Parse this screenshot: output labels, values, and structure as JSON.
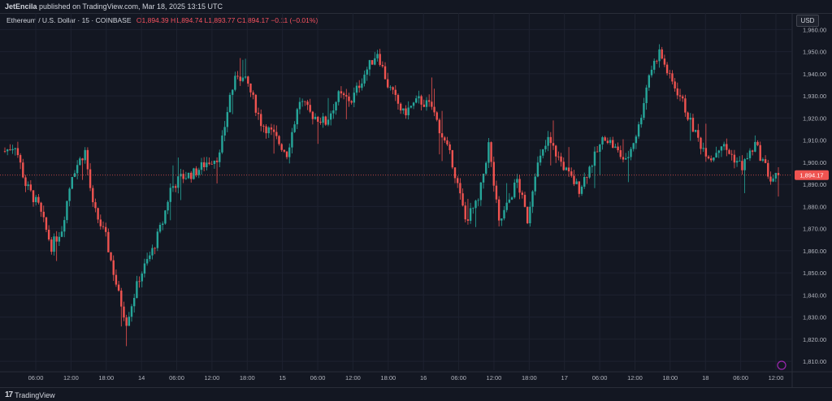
{
  "header": {
    "author": "JetEncila",
    "published_text": " published on TradingView.com, Mar 18, 2025 13:15 UTC"
  },
  "currency_label": "USD",
  "legend": {
    "symbol": "Ethereum / U.S. Dollar · 15 · COINBASE",
    "ohlc": "O1,894.39 H1,894.74 L1,893.77 C1,894.17 −0.11 (−0.01%)"
  },
  "footer": {
    "logo_mark": "17",
    "logo_text": "TradingView"
  },
  "colors": {
    "background": "#131722",
    "grid": "#1e2230",
    "up": "#26a69a",
    "down": "#ef5350",
    "price_line": "#ef5350",
    "axis_text": "#b2b5be"
  },
  "chart_data": {
    "type": "candlestick",
    "title": "",
    "xlabel": "",
    "ylabel": "",
    "ylim": [
      1806,
      1966
    ],
    "yticks": [
      1960,
      1950,
      1940,
      1930,
      1920,
      1910,
      1900,
      1890,
      1880,
      1870,
      1860,
      1850,
      1840,
      1830,
      1820,
      1810
    ],
    "ytick_labels": [
      "1,960.00",
      "1,950.00",
      "1,940.00",
      "1,930.00",
      "1,920.00",
      "1,910.00",
      "1,900.00",
      "1,890.00",
      "1,880.00",
      "1,870.00",
      "1,860.00",
      "1,850.00",
      "1,840.00",
      "1,830.00",
      "1,820.00",
      "1,810.00"
    ],
    "x_tick_labels": [
      "06:00",
      "12:00",
      "18:00",
      "14",
      "06:00",
      "12:00",
      "18:00",
      "15",
      "06:00",
      "12:00",
      "18:00",
      "16",
      "06:00",
      "12:00",
      "18:00",
      "17",
      "06:00",
      "12:00",
      "18:00",
      "18",
      "06:00",
      "12:00"
    ],
    "current_price": 1894.17,
    "current_price_label": "1,894.17",
    "trend_points": [
      [
        0,
        1905
      ],
      [
        4,
        1908
      ],
      [
        8,
        1890
      ],
      [
        13,
        1880
      ],
      [
        18,
        1862
      ],
      [
        22,
        1870
      ],
      [
        26,
        1895
      ],
      [
        31,
        1905
      ],
      [
        34,
        1880
      ],
      [
        39,
        1866
      ],
      [
        44,
        1840
      ],
      [
        47,
        1828
      ],
      [
        52,
        1848
      ],
      [
        57,
        1860
      ],
      [
        61,
        1873
      ],
      [
        64,
        1888
      ],
      [
        68,
        1893
      ],
      [
        73,
        1895
      ],
      [
        78,
        1900
      ],
      [
        83,
        1903
      ],
      [
        87,
        1930
      ],
      [
        90,
        1940
      ],
      [
        94,
        1935
      ],
      [
        99,
        1918
      ],
      [
        104,
        1912
      ],
      [
        109,
        1904
      ],
      [
        114,
        1928
      ],
      [
        118,
        1922
      ],
      [
        124,
        1918
      ],
      [
        129,
        1930
      ],
      [
        134,
        1928
      ],
      [
        139,
        1940
      ],
      [
        144,
        1950
      ],
      [
        148,
        1935
      ],
      [
        154,
        1922
      ],
      [
        160,
        1928
      ],
      [
        165,
        1925
      ],
      [
        169,
        1912
      ],
      [
        173,
        1900
      ],
      [
        178,
        1874
      ],
      [
        183,
        1882
      ],
      [
        187,
        1908
      ],
      [
        191,
        1872
      ],
      [
        194,
        1880
      ],
      [
        198,
        1892
      ],
      [
        202,
        1874
      ],
      [
        205,
        1896
      ],
      [
        210,
        1910
      ],
      [
        214,
        1902
      ],
      [
        218,
        1894
      ],
      [
        222,
        1888
      ],
      [
        227,
        1900
      ],
      [
        232,
        1912
      ],
      [
        236,
        1906
      ],
      [
        240,
        1900
      ],
      [
        245,
        1916
      ],
      [
        249,
        1940
      ],
      [
        253,
        1950
      ],
      [
        257,
        1938
      ],
      [
        261,
        1930
      ],
      [
        265,
        1918
      ],
      [
        269,
        1908
      ],
      [
        273,
        1902
      ],
      [
        277,
        1908
      ],
      [
        281,
        1903
      ],
      [
        285,
        1898
      ],
      [
        290,
        1908
      ],
      [
        294,
        1898
      ],
      [
        296,
        1892
      ],
      [
        299,
        1894.17
      ]
    ]
  }
}
